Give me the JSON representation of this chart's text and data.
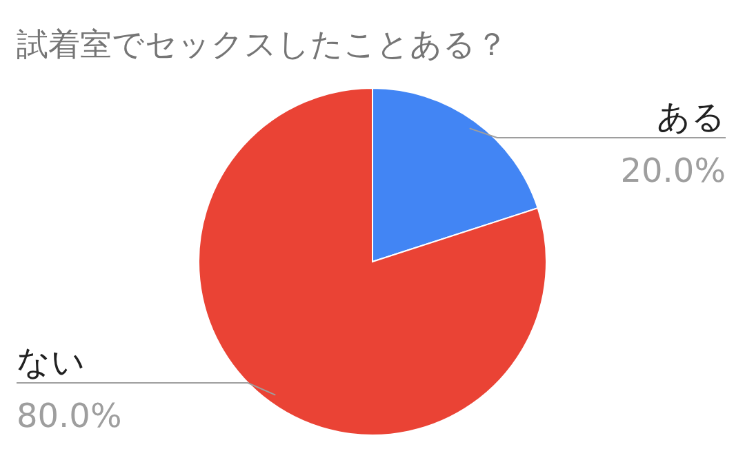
{
  "chart_data": {
    "type": "pie",
    "title": "試着室でセックスしたことある？",
    "categories": [
      "ある",
      "ない"
    ],
    "values": [
      20,
      80
    ],
    "value_labels": [
      "20.0%",
      "80.0%"
    ],
    "colors": [
      "#4285f4",
      "#ea4335"
    ],
    "legend": false
  }
}
